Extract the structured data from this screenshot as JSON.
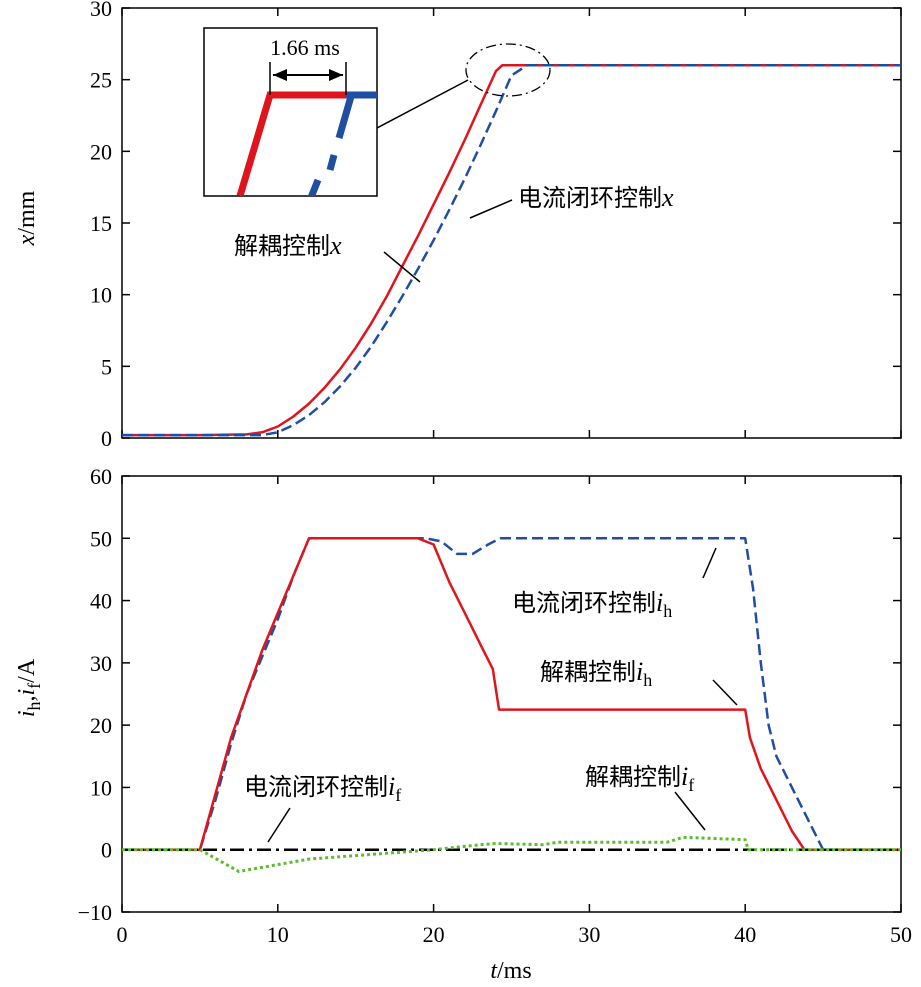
{
  "chart_data": [
    {
      "type": "line",
      "ylabel": {
        "var": "x",
        "unit": "/mm"
      },
      "xlim": [
        0,
        50
      ],
      "ylim": [
        0,
        30
      ],
      "yticks": [
        "0",
        "5",
        "10",
        "15",
        "20",
        "25",
        "30"
      ],
      "series": [
        {
          "name": "解耦控制x",
          "color": "#e0141c",
          "style": "solid",
          "x": [
            0,
            5,
            8,
            9,
            10,
            11,
            12,
            13,
            14,
            15,
            16,
            17,
            18,
            19,
            20,
            21,
            22,
            23,
            24,
            24.4,
            30,
            40,
            50
          ],
          "y": [
            0.2,
            0.2,
            0.25,
            0.4,
            0.8,
            1.5,
            2.4,
            3.5,
            4.8,
            6.3,
            8.0,
            9.9,
            12.0,
            14.1,
            16.3,
            18.5,
            20.8,
            23.2,
            25.6,
            26,
            26,
            26,
            26
          ]
        },
        {
          "name": "电流闭环控制x",
          "color": "#1f4ea3",
          "style": "dashed",
          "x": [
            0,
            5,
            9,
            10,
            11,
            12,
            13,
            14,
            15,
            16,
            17,
            18,
            19,
            20,
            21,
            22,
            23,
            24,
            25,
            26,
            30,
            40,
            50
          ],
          "y": [
            0.2,
            0.2,
            0.2,
            0.4,
            0.9,
            1.6,
            2.5,
            3.6,
            4.9,
            6.4,
            8.1,
            9.9,
            11.8,
            13.8,
            15.9,
            18.1,
            20.4,
            22.8,
            25.3,
            26,
            26,
            26,
            26
          ]
        }
      ],
      "annotations": [
        {
          "text": "解耦控制",
          "var": "x"
        },
        {
          "text": "电流闭环控制",
          "var": "x"
        }
      ],
      "inset": {
        "label": "1.66 ms"
      }
    },
    {
      "type": "line",
      "xlabel": {
        "var": "t",
        "unit": "/ms"
      },
      "ylabel": {
        "var1": "i",
        "sub1": "h",
        "sep": ",",
        "var2": "i",
        "sub2": "f",
        "unit": "/A"
      },
      "xlim": [
        0,
        50
      ],
      "ylim": [
        -10,
        60
      ],
      "xticks": [
        "0",
        "10",
        "20",
        "30",
        "40",
        "50"
      ],
      "yticks": [
        "−10",
        "0",
        "10",
        "20",
        "30",
        "40",
        "50",
        "60"
      ],
      "series": [
        {
          "name": "电流闭环控制ih",
          "color": "#1f4ea3",
          "style": "dashed",
          "x": [
            0,
            5,
            6,
            7,
            8,
            9,
            10,
            11,
            12,
            19.5,
            20.5,
            21.5,
            22.5,
            23.5,
            24.3,
            25,
            30,
            35,
            40,
            40.5,
            41,
            41.5,
            42,
            43,
            44,
            45,
            50
          ],
          "y": [
            0,
            0,
            8,
            17,
            25,
            31,
            37,
            44,
            50,
            50,
            49.5,
            47.5,
            47.5,
            49,
            50,
            50,
            50,
            50,
            50,
            42,
            30,
            20,
            15,
            10,
            5,
            0,
            0
          ]
        },
        {
          "name": "解耦控制ih",
          "color": "#e0141c",
          "style": "solid",
          "x": [
            0,
            5,
            6,
            7,
            8,
            9,
            10,
            11,
            12,
            19,
            20,
            20.5,
            21,
            22,
            23,
            23.8,
            24.2,
            30,
            35,
            40,
            40.3,
            41,
            42,
            43,
            43.8,
            50
          ],
          "y": [
            0,
            0,
            9,
            18,
            25,
            32,
            38,
            44,
            50,
            50,
            49,
            46,
            43,
            38,
            33,
            29,
            22.5,
            22.5,
            22.5,
            22.5,
            18,
            13,
            8,
            3,
            0,
            0
          ]
        },
        {
          "name": "电流闭环控制if",
          "color": "#000000",
          "style": "dashdot",
          "x": [
            0,
            50
          ],
          "y": [
            0,
            0
          ]
        },
        {
          "name": "解耦控制if",
          "color": "#5dbb2e",
          "style": "dotted",
          "x": [
            0,
            5,
            7.5,
            12,
            20,
            23,
            24,
            27,
            28,
            35,
            36,
            40,
            40.2,
            44,
            50
          ],
          "y": [
            0,
            0,
            -3.5,
            -1.5,
            0,
            0.8,
            1,
            0.8,
            1.2,
            1.2,
            2,
            1.6,
            0,
            0,
            0
          ]
        }
      ],
      "annotations": [
        {
          "text": "电流闭环控制",
          "var": "i",
          "sub": "h"
        },
        {
          "text": "解耦控制",
          "var": "i",
          "sub": "h"
        },
        {
          "text": "电流闭环控制",
          "var": "i",
          "sub": "f"
        },
        {
          "text": "解耦控制",
          "var": "i",
          "sub": "f"
        }
      ]
    }
  ]
}
